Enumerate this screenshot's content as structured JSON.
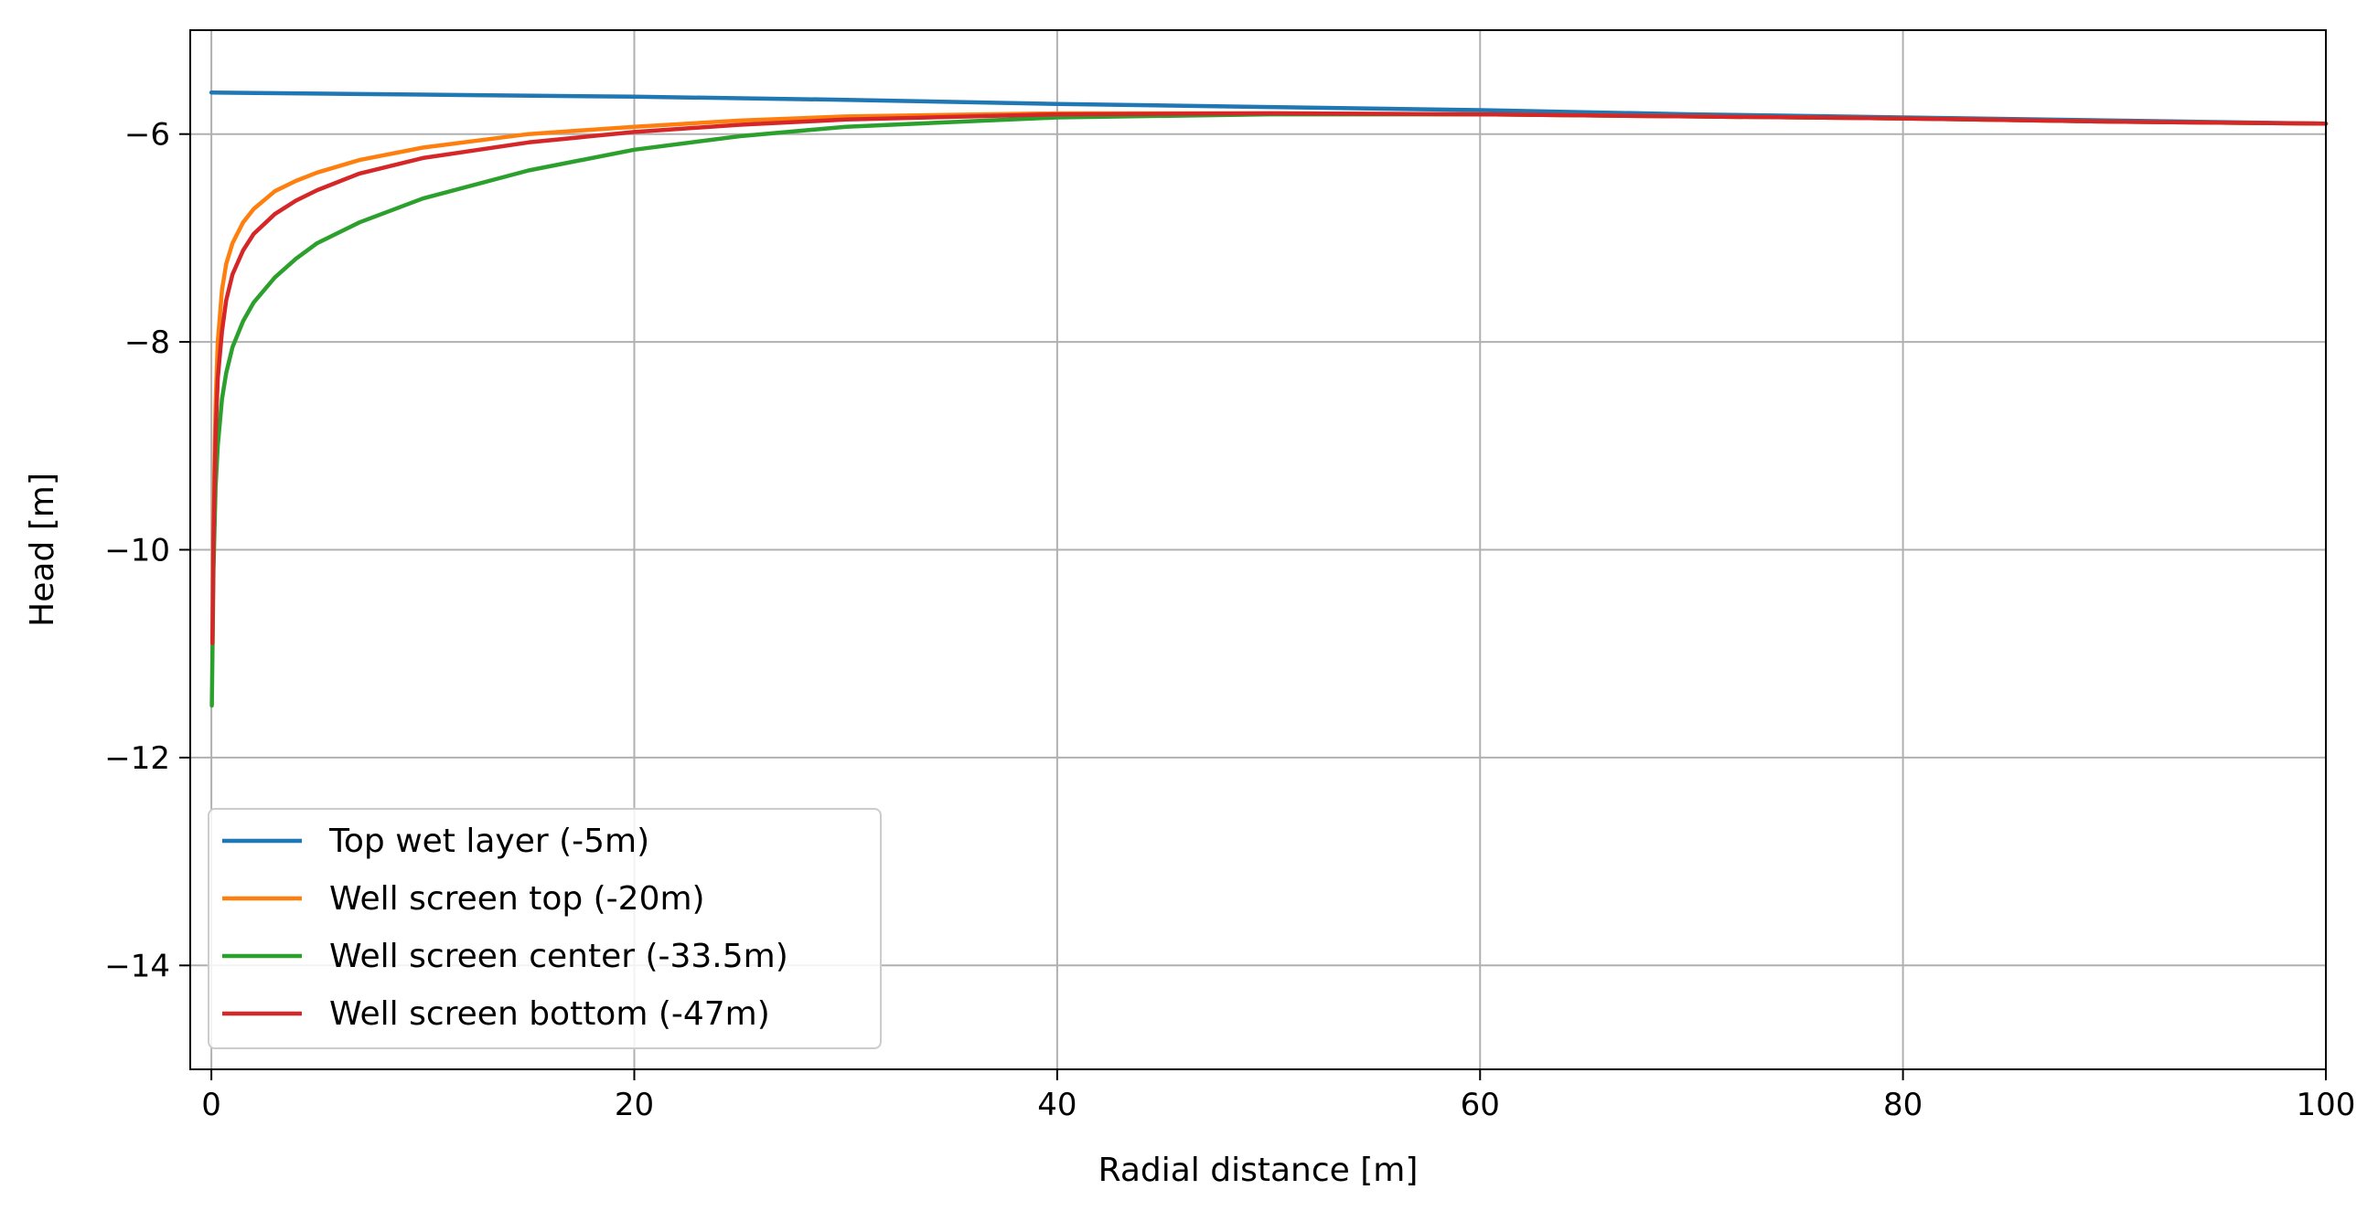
{
  "chart_data": {
    "type": "line",
    "title": "",
    "xlabel": "Radial distance [m]",
    "ylabel": "Head [m]",
    "xlim": [
      -1,
      100
    ],
    "ylim": [
      -15,
      -5
    ],
    "xticks": [
      0,
      20,
      40,
      60,
      80,
      100
    ],
    "xtick_labels": [
      "0",
      "20",
      "40",
      "60",
      "80",
      "100"
    ],
    "yticks": [
      -6,
      -8,
      -10,
      -12,
      -14
    ],
    "ytick_labels": [
      "−6",
      "−8",
      "−10",
      "−12",
      "−14"
    ],
    "grid": true,
    "legend_position": "lower-left",
    "series": [
      {
        "name": "Top wet layer (-5m)",
        "color": "#1f77b4",
        "x": [
          0,
          5,
          10,
          20,
          30,
          40,
          50,
          60,
          70,
          80,
          90,
          100
        ],
        "y": [
          -5.6,
          -5.61,
          -5.62,
          -5.64,
          -5.67,
          -5.71,
          -5.74,
          -5.77,
          -5.81,
          -5.84,
          -5.87,
          -5.9
        ]
      },
      {
        "name": "Well screen top (-20m)",
        "color": "#ff7f0e",
        "x": [
          0.05,
          0.1,
          0.2,
          0.3,
          0.5,
          0.7,
          1,
          1.5,
          2,
          3,
          4,
          5,
          7,
          10,
          15,
          20,
          25,
          30,
          40,
          50,
          60,
          70,
          80,
          90,
          100
        ],
        "y": [
          -10.9,
          -9.7,
          -8.6,
          -8.0,
          -7.5,
          -7.25,
          -7.05,
          -6.85,
          -6.72,
          -6.55,
          -6.45,
          -6.37,
          -6.25,
          -6.13,
          -6.0,
          -5.93,
          -5.87,
          -5.83,
          -5.8,
          -5.8,
          -5.81,
          -5.83,
          -5.85,
          -5.88,
          -5.9
        ]
      },
      {
        "name": "Well screen center (-33.5m)",
        "color": "#2ca02c",
        "x": [
          0.02,
          0.05,
          0.1,
          0.2,
          0.3,
          0.5,
          0.7,
          1,
          1.5,
          2,
          3,
          4,
          5,
          7,
          10,
          15,
          20,
          25,
          30,
          40,
          50,
          60,
          70,
          80,
          90,
          100
        ],
        "y": [
          -11.5,
          -11.0,
          -10.2,
          -9.4,
          -9.0,
          -8.55,
          -8.3,
          -8.05,
          -7.8,
          -7.62,
          -7.38,
          -7.2,
          -7.05,
          -6.85,
          -6.62,
          -6.35,
          -6.15,
          -6.02,
          -5.93,
          -5.84,
          -5.81,
          -5.81,
          -5.83,
          -5.85,
          -5.88,
          -5.9
        ]
      },
      {
        "name": "Well screen bottom (-47m)",
        "color": "#d62728",
        "x": [
          0.05,
          0.1,
          0.2,
          0.3,
          0.5,
          0.7,
          1,
          1.5,
          2,
          3,
          4,
          5,
          7,
          10,
          15,
          20,
          25,
          30,
          40,
          50,
          60,
          70,
          80,
          90,
          100
        ],
        "y": [
          -10.9,
          -9.9,
          -8.9,
          -8.35,
          -7.9,
          -7.6,
          -7.35,
          -7.12,
          -6.96,
          -6.77,
          -6.64,
          -6.54,
          -6.38,
          -6.23,
          -6.08,
          -5.98,
          -5.91,
          -5.86,
          -5.81,
          -5.8,
          -5.81,
          -5.83,
          -5.85,
          -5.88,
          -5.9
        ]
      }
    ]
  }
}
